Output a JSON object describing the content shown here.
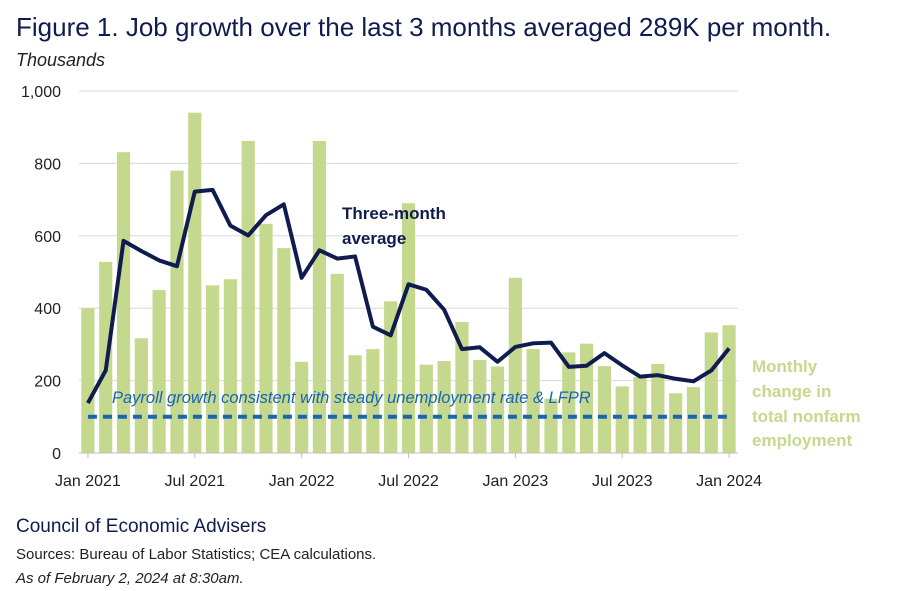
{
  "title": "Figure 1. Job growth over the last 3 months averaged 289K per month.",
  "units": "Thousands",
  "footer": {
    "org": "Council of Economic Advisers",
    "sources": "Sources: Bureau of Labor Statistics; CEA calculations.",
    "as_of": "As of February 2, 2024 at 8:30am."
  },
  "colors": {
    "bars": "#c5d98e",
    "line": "#0f1c4d",
    "dashed": "#1a63b5",
    "grid": "#d9d9d9",
    "bar_label": "#c5d98e"
  },
  "chart_data": {
    "type": "bar",
    "ylim": [
      0,
      1000
    ],
    "y_ticks": [
      0,
      200,
      400,
      600,
      800,
      1000
    ],
    "y_tick_labels": [
      "0",
      "200",
      "400",
      "600",
      "800",
      "1,000"
    ],
    "x_tick_labels": [
      {
        "index": 0,
        "label": "Jan 2021"
      },
      {
        "index": 6,
        "label": "Jul 2021"
      },
      {
        "index": 12,
        "label": "Jan 2022"
      },
      {
        "index": 18,
        "label": "Jul 2022"
      },
      {
        "index": 24,
        "label": "Jan 2023"
      },
      {
        "index": 30,
        "label": "Jul 2023"
      },
      {
        "index": 36,
        "label": "Jan 2024"
      }
    ],
    "categories": [
      "Jan 2021",
      "Feb 2021",
      "Mar 2021",
      "Apr 2021",
      "May 2021",
      "Jun 2021",
      "Jul 2021",
      "Aug 2021",
      "Sep 2021",
      "Oct 2021",
      "Nov 2021",
      "Dec 2021",
      "Jan 2022",
      "Feb 2022",
      "Mar 2022",
      "Apr 2022",
      "May 2022",
      "Jun 2022",
      "Jul 2022",
      "Aug 2022",
      "Sep 2022",
      "Oct 2022",
      "Nov 2022",
      "Dec 2022",
      "Jan 2023",
      "Feb 2023",
      "Mar 2023",
      "Apr 2023",
      "May 2023",
      "Jun 2023",
      "Jul 2023",
      "Aug 2023",
      "Sep 2023",
      "Oct 2023",
      "Nov 2023",
      "Dec 2023",
      "Jan 2024"
    ],
    "series": [
      {
        "name": "Monthly change in total nonfarm employment",
        "kind": "bar",
        "values": [
          400,
          528,
          831,
          317,
          450,
          780,
          940,
          463,
          480,
          862,
          633,
          566,
          252,
          862,
          495,
          270,
          287,
          419,
          690,
          244,
          254,
          362,
          257,
          239,
          484,
          287,
          150,
          278,
          302,
          240,
          184,
          210,
          246,
          165,
          182,
          333,
          353
        ]
      },
      {
        "name": "Three-month average",
        "kind": "line",
        "values": [
          138,
          228,
          586,
          558,
          532,
          516,
          722,
          727,
          628,
          601,
          657,
          687,
          484,
          560,
          537,
          543,
          349,
          325,
          466,
          451,
          396,
          287,
          292,
          252,
          293,
          303,
          305,
          238,
          241,
          276,
          242,
          211,
          215,
          205,
          198,
          228,
          289
        ]
      },
      {
        "name": "Payroll growth consistent with steady unemployment rate & LFPR",
        "kind": "dashed",
        "values": [
          100,
          100,
          100,
          100,
          100,
          100,
          100,
          100,
          100,
          100,
          100,
          100,
          100,
          100,
          100,
          100,
          100,
          100,
          100,
          100,
          100,
          100,
          100,
          100,
          100,
          100,
          100,
          100,
          100,
          100,
          100,
          100,
          100,
          100,
          100,
          100,
          100
        ]
      }
    ],
    "annotations": {
      "line_label_1": "Three-month",
      "line_label_2": "average",
      "dashed_label": "Payroll growth consistent with steady unemployment rate & LFPR",
      "bar_label_1": "Monthly",
      "bar_label_2": "change in",
      "bar_label_3": "total nonfarm",
      "bar_label_4": "employment"
    },
    "grid": true
  }
}
